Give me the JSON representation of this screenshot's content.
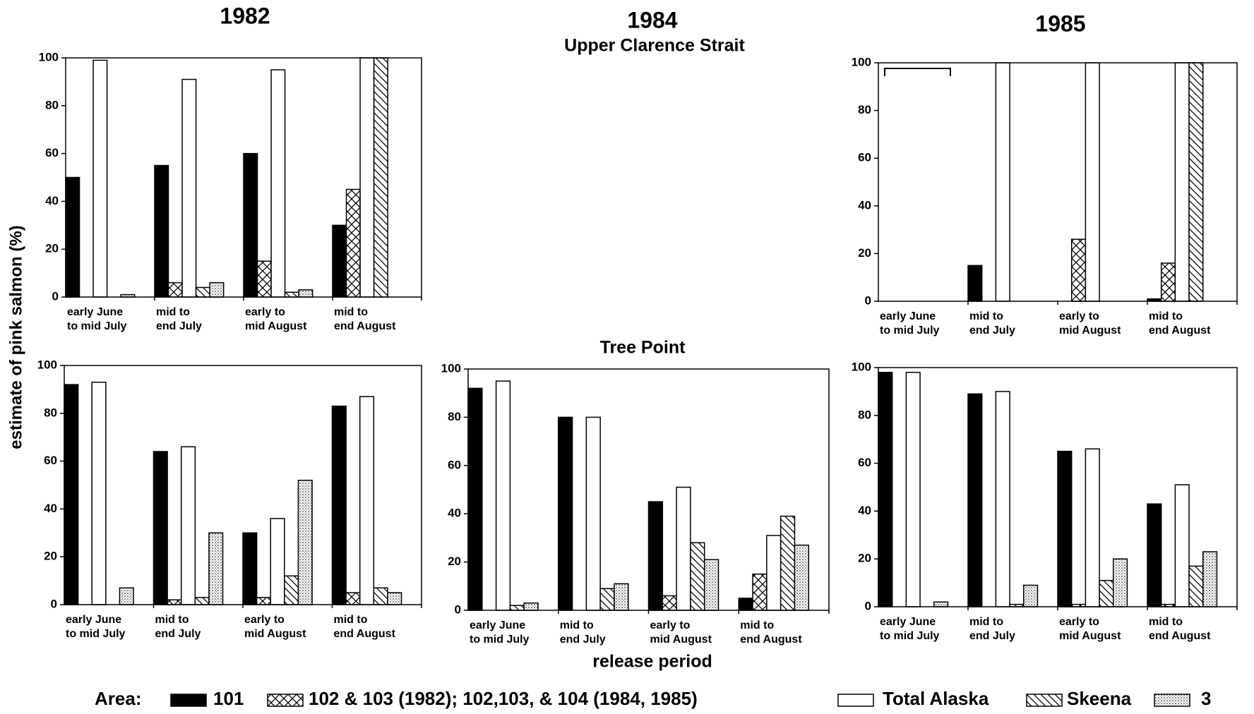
{
  "headers": {
    "years": [
      "1982",
      "1984",
      "1985"
    ],
    "sections": [
      "Upper Clarence Strait",
      "Tree Point"
    ],
    "y_label": "estimate of pink salmon (%)",
    "x_label": "release period"
  },
  "legend_title": "Area:",
  "chart_data": [
    {
      "type": "bar",
      "ylim": [
        0,
        100
      ],
      "yticks": [
        0,
        20,
        40,
        60,
        80,
        100
      ],
      "categories": [
        [
          "early June",
          "to mid July"
        ],
        [
          "mid to",
          "end July"
        ],
        [
          "early to",
          "mid August"
        ],
        [
          "mid to",
          "end August"
        ]
      ],
      "series": [
        {
          "name": "101",
          "color": "#000000",
          "pattern": "solid",
          "values": [
            50,
            55,
            60,
            30
          ]
        },
        {
          "name": "102 & 103 (1982); 102,103, & 104 (1984, 1985)",
          "color": "#ffffff",
          "pattern": "crosshatch",
          "values": [
            0,
            6,
            15,
            45
          ]
        },
        {
          "name": "Total Alaska",
          "color": "#ffffff",
          "pattern": "none",
          "values": [
            99,
            91,
            95,
            100
          ]
        },
        {
          "name": "Skeena",
          "color": "#ffffff",
          "pattern": "diagonal",
          "values": [
            0,
            4,
            2,
            100
          ]
        },
        {
          "name": "3",
          "color": "#ffffff",
          "pattern": "dots",
          "values": [
            1,
            6,
            3,
            0
          ]
        }
      ]
    },
    {
      "type": "bar",
      "ylim": [
        0,
        100
      ],
      "yticks": [
        0,
        20,
        40,
        60,
        80,
        100
      ],
      "categories": [
        [
          "early June",
          "to mid July"
        ],
        [
          "mid to",
          "end July"
        ],
        [
          "early to",
          "mid August"
        ],
        [
          "mid to",
          "end August"
        ]
      ],
      "series": [
        {
          "name": "101",
          "color": "#000000",
          "pattern": "solid",
          "values": [
            0,
            15,
            0,
            1
          ]
        },
        {
          "name": "102 & 103 (1982); 102,103, & 104 (1984, 1985)",
          "color": "#ffffff",
          "pattern": "crosshatch",
          "values": [
            0,
            0,
            26,
            16
          ]
        },
        {
          "name": "Total Alaska",
          "color": "#ffffff",
          "pattern": "none",
          "values": [
            0,
            100,
            100,
            100
          ]
        },
        {
          "name": "Skeena",
          "color": "#ffffff",
          "pattern": "diagonal",
          "values": [
            0,
            0,
            0,
            100
          ]
        },
        {
          "name": "3",
          "color": "#ffffff",
          "pattern": "dots",
          "values": [
            0,
            0,
            0,
            0
          ]
        }
      ]
    },
    {
      "type": "bar",
      "ylim": [
        0,
        100
      ],
      "yticks": [
        0,
        20,
        40,
        60,
        80,
        100
      ],
      "categories": [
        [
          "early June",
          "to mid July"
        ],
        [
          "mid to",
          "end July"
        ],
        [
          "early to",
          "mid August"
        ],
        [
          "mid to",
          "end August"
        ]
      ],
      "series": [
        {
          "name": "101",
          "color": "#000000",
          "pattern": "solid",
          "values": [
            92,
            64,
            30,
            83
          ]
        },
        {
          "name": "102 & 103 (1982); 102,103, & 104 (1984, 1985)",
          "color": "#ffffff",
          "pattern": "crosshatch",
          "values": [
            0,
            2,
            3,
            5
          ]
        },
        {
          "name": "Total Alaska",
          "color": "#ffffff",
          "pattern": "none",
          "values": [
            93,
            66,
            36,
            87
          ]
        },
        {
          "name": "Skeena",
          "color": "#ffffff",
          "pattern": "diagonal",
          "values": [
            0,
            3,
            12,
            7
          ]
        },
        {
          "name": "3",
          "color": "#ffffff",
          "pattern": "dots",
          "values": [
            7,
            30,
            52,
            5
          ]
        }
      ]
    },
    {
      "type": "bar",
      "ylim": [
        0,
        100
      ],
      "yticks": [
        0,
        20,
        40,
        60,
        80,
        100
      ],
      "categories": [
        [
          "early June",
          "to mid July"
        ],
        [
          "mid to",
          "end July"
        ],
        [
          "early to",
          "mid August"
        ],
        [
          "mid to",
          "end August"
        ]
      ],
      "series": [
        {
          "name": "101",
          "color": "#000000",
          "pattern": "solid",
          "values": [
            92,
            80,
            45,
            5
          ]
        },
        {
          "name": "102 & 103 (1982); 102,103, & 104 (1984, 1985)",
          "color": "#ffffff",
          "pattern": "crosshatch",
          "values": [
            0,
            0,
            6,
            15
          ]
        },
        {
          "name": "Total Alaska",
          "color": "#ffffff",
          "pattern": "none",
          "values": [
            95,
            80,
            51,
            31
          ]
        },
        {
          "name": "Skeena",
          "color": "#ffffff",
          "pattern": "diagonal",
          "values": [
            2,
            9,
            28,
            39
          ]
        },
        {
          "name": "3",
          "color": "#ffffff",
          "pattern": "dots",
          "values": [
            3,
            11,
            21,
            27
          ]
        }
      ]
    },
    {
      "type": "bar",
      "ylim": [
        0,
        100
      ],
      "yticks": [
        0,
        20,
        40,
        60,
        80,
        100
      ],
      "categories": [
        [
          "early June",
          "to mid July"
        ],
        [
          "mid to",
          "end July"
        ],
        [
          "early to",
          "mid August"
        ],
        [
          "mid to",
          "end August"
        ]
      ],
      "series": [
        {
          "name": "101",
          "color": "#000000",
          "pattern": "solid",
          "values": [
            98,
            89,
            65,
            43
          ]
        },
        {
          "name": "102 & 103 (1982); 102,103, & 104 (1984, 1985)",
          "color": "#ffffff",
          "pattern": "crosshatch",
          "values": [
            0,
            0,
            1,
            1
          ]
        },
        {
          "name": "Total Alaska",
          "color": "#ffffff",
          "pattern": "none",
          "values": [
            98,
            90,
            66,
            51
          ]
        },
        {
          "name": "Skeena",
          "color": "#ffffff",
          "pattern": "diagonal",
          "values": [
            0,
            1,
            11,
            17
          ]
        },
        {
          "name": "3",
          "color": "#ffffff",
          "pattern": "dots",
          "values": [
            2,
            9,
            20,
            23
          ]
        }
      ]
    }
  ]
}
